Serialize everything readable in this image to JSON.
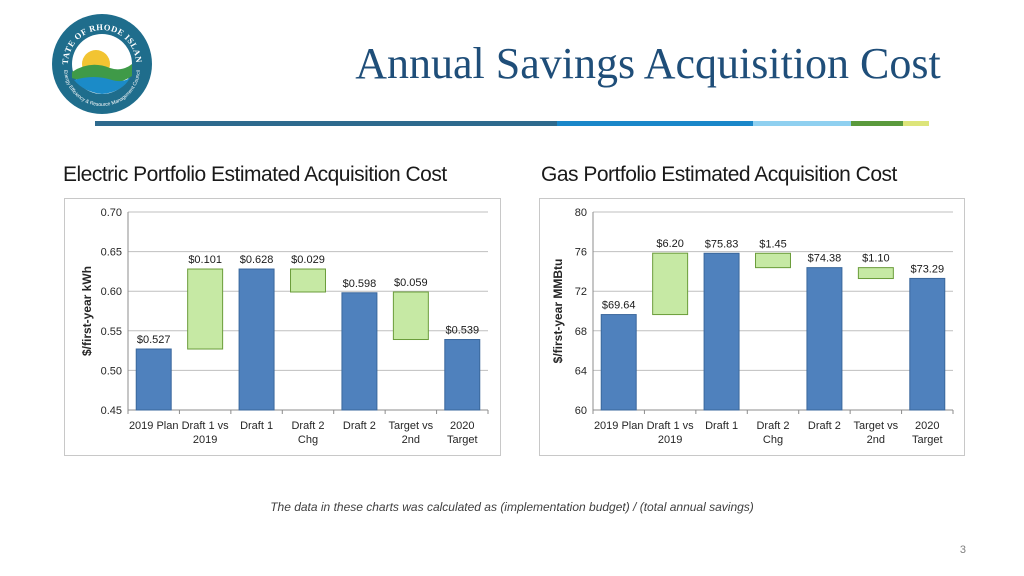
{
  "header": {
    "logo_text_top": "STATE OF RHODE ISLAND",
    "logo_text_bottom": "Energy Efficiency & Resource Management Council",
    "title": "Annual Savings Acquisition Cost",
    "rule_colors": [
      "#2e6a8e",
      "#1a87c9",
      "#8fd0f0",
      "#5a9a3c",
      "#dde57a"
    ]
  },
  "charts": {
    "electric_title": "Electric Portfolio Estimated Acquisition Cost",
    "gas_title": "Gas Portfolio Estimated Acquisition Cost"
  },
  "footnote": "The data in these charts was calculated as (implementation budget) / (total annual savings)",
  "page_number": "3",
  "chart_data": [
    {
      "type": "bar",
      "subtype": "waterfall",
      "title": "Electric Portfolio Estimated Acquisition Cost",
      "ylabel": "$/first-year kWh",
      "ylim": [
        0.45,
        0.7
      ],
      "yticks": [
        "0.45",
        "0.50",
        "0.55",
        "0.60",
        "0.65",
        "0.70"
      ],
      "ytick_values": [
        0.45,
        0.5,
        0.55,
        0.6,
        0.65,
        0.7
      ],
      "categories": [
        [
          "2019 Plan"
        ],
        [
          "Draft 1 vs",
          "2019"
        ],
        [
          "Draft 1"
        ],
        [
          "Draft 2",
          "Chg"
        ],
        [
          "Draft 2"
        ],
        [
          "Target vs",
          "2nd"
        ],
        [
          "2020",
          "Target"
        ]
      ],
      "bars": [
        {
          "kind": "total",
          "start": 0.45,
          "end": 0.527,
          "label": "$0.527"
        },
        {
          "kind": "change",
          "start": 0.527,
          "end": 0.628,
          "label": "$0.101"
        },
        {
          "kind": "total",
          "start": 0.45,
          "end": 0.628,
          "label": "$0.628"
        },
        {
          "kind": "change",
          "start": 0.599,
          "end": 0.628,
          "label": "$0.029"
        },
        {
          "kind": "total",
          "start": 0.45,
          "end": 0.598,
          "label": "$0.598"
        },
        {
          "kind": "change",
          "start": 0.539,
          "end": 0.599,
          "label": "$0.059"
        },
        {
          "kind": "total",
          "start": 0.45,
          "end": 0.539,
          "label": "$0.539"
        }
      ],
      "colors": {
        "total": "#4f81bd",
        "change": "#c6e9a4"
      }
    },
    {
      "type": "bar",
      "subtype": "waterfall",
      "title": "Gas Portfolio Estimated Acquisition Cost",
      "ylabel": "$/first-year MMBtu",
      "ylim": [
        60,
        80
      ],
      "yticks": [
        "60",
        "64",
        "68",
        "72",
        "76",
        "80"
      ],
      "ytick_values": [
        60,
        64,
        68,
        72,
        76,
        80
      ],
      "categories": [
        [
          "2019 Plan"
        ],
        [
          "Draft 1 vs",
          "2019"
        ],
        [
          "Draft 1"
        ],
        [
          "Draft 2",
          "Chg"
        ],
        [
          "Draft 2"
        ],
        [
          "Target vs",
          "2nd"
        ],
        [
          "2020",
          "Target"
        ]
      ],
      "bars": [
        {
          "kind": "total",
          "start": 60,
          "end": 69.64,
          "label": "$69.64"
        },
        {
          "kind": "change",
          "start": 69.64,
          "end": 75.84,
          "label": "$6.20"
        },
        {
          "kind": "total",
          "start": 60,
          "end": 75.83,
          "label": "$75.83"
        },
        {
          "kind": "change",
          "start": 74.38,
          "end": 75.83,
          "label": "$1.45"
        },
        {
          "kind": "total",
          "start": 60,
          "end": 74.38,
          "label": "$74.38"
        },
        {
          "kind": "change",
          "start": 73.28,
          "end": 74.38,
          "label": "$1.10"
        },
        {
          "kind": "total",
          "start": 60,
          "end": 73.29,
          "label": "$73.29"
        }
      ],
      "colors": {
        "total": "#4f81bd",
        "change": "#c6e9a4"
      }
    }
  ]
}
